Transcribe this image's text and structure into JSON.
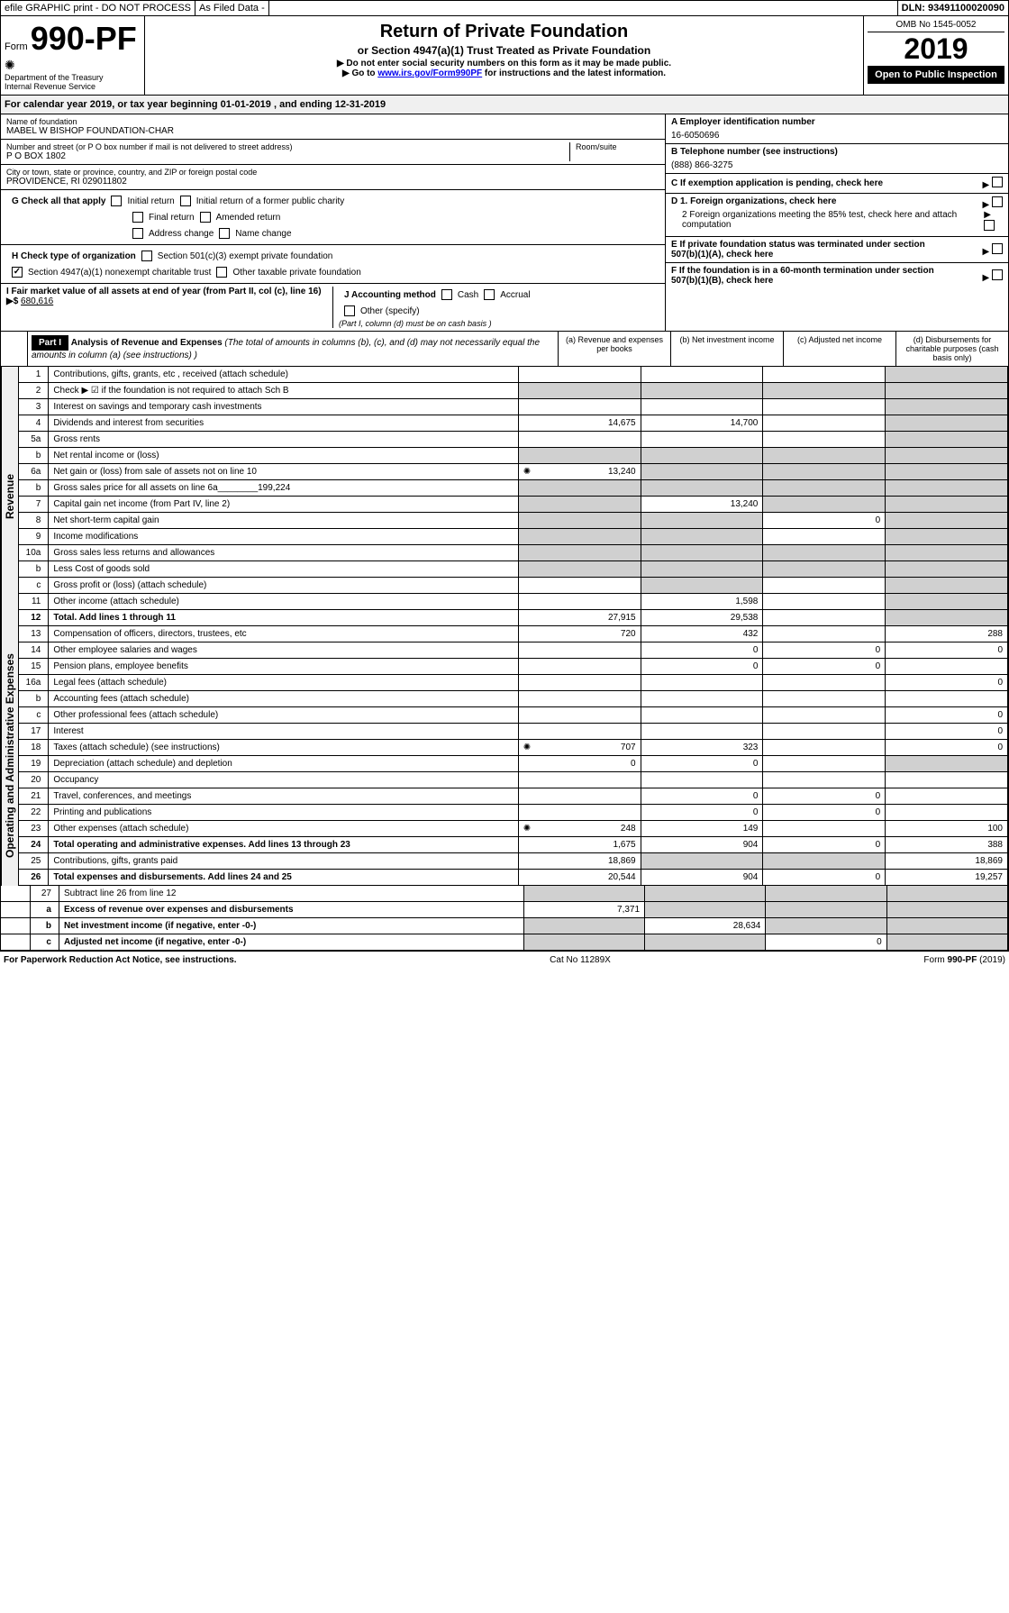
{
  "topBar": {
    "efile": "efile GRAPHIC print - DO NOT PROCESS",
    "asFiled": "As Filed Data -",
    "dln": "DLN: 93491100020090"
  },
  "header": {
    "formPrefix": "Form",
    "formNumber": "990-PF",
    "dept1": "Department of the Treasury",
    "dept2": "Internal Revenue Service",
    "title": "Return of Private Foundation",
    "subtitle": "or Section 4947(a)(1) Trust Treated as Private Foundation",
    "note1": "▶ Do not enter social security numbers on this form as it may be made public.",
    "note2": "▶ Go to www.irs.gov/Form990PF for instructions and the latest information.",
    "omb": "OMB No 1545-0052",
    "year": "2019",
    "openPublic": "Open to Public Inspection"
  },
  "calYear": "For calendar year 2019, or tax year beginning 01-01-2019         , and ending 12-31-2019",
  "foundation": {
    "nameLabel": "Name of foundation",
    "name": "MABEL W BISHOP FOUNDATION-CHAR",
    "addressLabel": "Number and street (or P O  box number if mail is not delivered to street address)",
    "address": "P O BOX 1802",
    "roomLabel": "Room/suite",
    "cityLabel": "City or town, state or province, country, and ZIP or foreign postal code",
    "city": "PROVIDENCE, RI  029011802",
    "einLabel": "A Employer identification number",
    "ein": "16-6050696",
    "phoneLabel": "B Telephone number (see instructions)",
    "phone": "(888) 866-3275",
    "cLabel": "C If exemption application is pending, check here",
    "d1": "D 1. Foreign organizations, check here",
    "d2": "2 Foreign organizations meeting the 85% test, check here and attach computation",
    "eLabel": "E  If private foundation status was terminated under section 507(b)(1)(A), check here",
    "fLabel": "F  If the foundation is in a 60-month termination under section 507(b)(1)(B), check here"
  },
  "checkG": {
    "label": "G Check all that apply",
    "opts": [
      "Initial return",
      "Initial return of a former public charity",
      "Final return",
      "Amended return",
      "Address change",
      "Name change"
    ]
  },
  "checkH": {
    "label": "H Check type of organization",
    "opt1": "Section 501(c)(3) exempt private foundation",
    "opt2": "Section 4947(a)(1) nonexempt charitable trust",
    "opt3": "Other taxable private foundation"
  },
  "sectionI": {
    "label": "I Fair market value of all assets at end of year (from Part II, col  (c), line 16) ▶$",
    "value": "680,616"
  },
  "sectionJ": {
    "label": "J Accounting method",
    "cash": "Cash",
    "accrual": "Accrual",
    "other": "Other (specify)",
    "note": "(Part I, column (d) must be on cash basis )"
  },
  "part1": {
    "label": "Part I",
    "title": "Analysis of Revenue and Expenses",
    "desc": "(The total of amounts in columns (b), (c), and (d) may not necessarily equal the amounts in column (a) (see instructions) )",
    "colA": "(a) Revenue and expenses per books",
    "colB": "(b) Net investment income",
    "colC": "(c) Adjusted net income",
    "colD": "(d) Disbursements for charitable purposes (cash basis only)"
  },
  "revenueLabel": "Revenue",
  "expensesLabel": "Operating and Administrative Expenses",
  "rows": [
    {
      "n": "1",
      "d": "Contributions, gifts, grants, etc , received (attach schedule)",
      "a": "",
      "b": "",
      "c": "",
      "dd": "",
      "shadeD": true
    },
    {
      "n": "2",
      "d": "Check ▶ ☑ if the foundation is not required to attach Sch  B",
      "a": "",
      "b": "",
      "c": "",
      "dd": "",
      "shadeA": true,
      "shadeB": true,
      "shadeC": true,
      "shadeD": true,
      "bold": false
    },
    {
      "n": "3",
      "d": "Interest on savings and temporary cash investments",
      "a": "",
      "b": "",
      "c": "",
      "dd": "",
      "shadeD": true
    },
    {
      "n": "4",
      "d": "Dividends and interest from securities",
      "a": "14,675",
      "b": "14,700",
      "c": "",
      "dd": "",
      "shadeD": true
    },
    {
      "n": "5a",
      "d": "Gross rents",
      "a": "",
      "b": "",
      "c": "",
      "dd": "",
      "shadeD": true
    },
    {
      "n": "b",
      "d": "Net rental income or (loss)",
      "a": "",
      "b": "",
      "c": "",
      "dd": "",
      "shadeA": true,
      "shadeB": true,
      "shadeC": true,
      "shadeD": true
    },
    {
      "n": "6a",
      "d": "Net gain or (loss) from sale of assets not on line 10",
      "a": "13,240",
      "b": "",
      "c": "",
      "dd": "",
      "icon": true,
      "shadeB": true,
      "shadeC": true,
      "shadeD": true
    },
    {
      "n": "b",
      "d": "Gross sales price for all assets on line 6a________199,224",
      "a": "",
      "b": "",
      "c": "",
      "dd": "",
      "shadeA": true,
      "shadeB": true,
      "shadeC": true,
      "shadeD": true
    },
    {
      "n": "7",
      "d": "Capital gain net income (from Part IV, line 2)",
      "a": "",
      "b": "13,240",
      "c": "",
      "dd": "",
      "shadeA": true,
      "shadeC": true,
      "shadeD": true
    },
    {
      "n": "8",
      "d": "Net short-term capital gain",
      "a": "",
      "b": "",
      "c": "0",
      "dd": "",
      "shadeA": true,
      "shadeB": true,
      "shadeD": true
    },
    {
      "n": "9",
      "d": "Income modifications",
      "a": "",
      "b": "",
      "c": "",
      "dd": "",
      "shadeA": true,
      "shadeB": true,
      "shadeD": true
    },
    {
      "n": "10a",
      "d": "Gross sales less returns and allowances",
      "a": "",
      "b": "",
      "c": "",
      "dd": "",
      "shadeA": true,
      "shadeB": true,
      "shadeC": true,
      "shadeD": true
    },
    {
      "n": "b",
      "d": "Less  Cost of goods sold",
      "a": "",
      "b": "",
      "c": "",
      "dd": "",
      "shadeA": true,
      "shadeB": true,
      "shadeC": true,
      "shadeD": true
    },
    {
      "n": "c",
      "d": "Gross profit or (loss) (attach schedule)",
      "a": "",
      "b": "",
      "c": "",
      "dd": "",
      "shadeB": true,
      "shadeD": true
    },
    {
      "n": "11",
      "d": "Other income (attach schedule)",
      "a": "",
      "b": "1,598",
      "c": "",
      "dd": "",
      "shadeD": true
    },
    {
      "n": "12",
      "d": "Total. Add lines 1 through 11",
      "a": "27,915",
      "b": "29,538",
      "c": "",
      "dd": "",
      "bold": true,
      "shadeD": true
    }
  ],
  "expRows": [
    {
      "n": "13",
      "d": "Compensation of officers, directors, trustees, etc",
      "a": "720",
      "b": "432",
      "c": "",
      "dd": "288"
    },
    {
      "n": "14",
      "d": "Other employee salaries and wages",
      "a": "",
      "b": "0",
      "c": "0",
      "dd": "0"
    },
    {
      "n": "15",
      "d": "Pension plans, employee benefits",
      "a": "",
      "b": "0",
      "c": "0",
      "dd": ""
    },
    {
      "n": "16a",
      "d": "Legal fees (attach schedule)",
      "a": "",
      "b": "",
      "c": "",
      "dd": "0"
    },
    {
      "n": "b",
      "d": "Accounting fees (attach schedule)",
      "a": "",
      "b": "",
      "c": "",
      "dd": ""
    },
    {
      "n": "c",
      "d": "Other professional fees (attach schedule)",
      "a": "",
      "b": "",
      "c": "",
      "dd": "0"
    },
    {
      "n": "17",
      "d": "Interest",
      "a": "",
      "b": "",
      "c": "",
      "dd": "0"
    },
    {
      "n": "18",
      "d": "Taxes (attach schedule) (see instructions)",
      "a": "707",
      "b": "323",
      "c": "",
      "dd": "0",
      "icon": true
    },
    {
      "n": "19",
      "d": "Depreciation (attach schedule) and depletion",
      "a": "0",
      "b": "0",
      "c": "",
      "dd": "",
      "shadeD": true
    },
    {
      "n": "20",
      "d": "Occupancy",
      "a": "",
      "b": "",
      "c": "",
      "dd": ""
    },
    {
      "n": "21",
      "d": "Travel, conferences, and meetings",
      "a": "",
      "b": "0",
      "c": "0",
      "dd": ""
    },
    {
      "n": "22",
      "d": "Printing and publications",
      "a": "",
      "b": "0",
      "c": "0",
      "dd": ""
    },
    {
      "n": "23",
      "d": "Other expenses (attach schedule)",
      "a": "248",
      "b": "149",
      "c": "",
      "dd": "100",
      "icon": true
    },
    {
      "n": "24",
      "d": "Total operating and administrative expenses. Add lines 13 through 23",
      "a": "1,675",
      "b": "904",
      "c": "0",
      "dd": "388",
      "bold": true
    },
    {
      "n": "25",
      "d": "Contributions, gifts, grants paid",
      "a": "18,869",
      "b": "",
      "c": "",
      "dd": "18,869",
      "shadeB": true,
      "shadeC": true
    },
    {
      "n": "26",
      "d": "Total expenses and disbursements. Add lines 24 and 25",
      "a": "20,544",
      "b": "904",
      "c": "0",
      "dd": "19,257",
      "bold": true
    }
  ],
  "bottomRows": [
    {
      "n": "27",
      "d": "Subtract line 26 from line 12",
      "a": "",
      "b": "",
      "c": "",
      "dd": "",
      "shadeA": true,
      "shadeB": true,
      "shadeC": true,
      "shadeD": true
    },
    {
      "n": "a",
      "d": "Excess of revenue over expenses and disbursements",
      "a": "7,371",
      "b": "",
      "c": "",
      "dd": "",
      "bold": true,
      "shadeB": true,
      "shadeC": true,
      "shadeD": true
    },
    {
      "n": "b",
      "d": "Net investment income (if negative, enter -0-)",
      "a": "",
      "b": "28,634",
      "c": "",
      "dd": "",
      "bold": true,
      "shadeA": true,
      "shadeC": true,
      "shadeD": true
    },
    {
      "n": "c",
      "d": "Adjusted net income (if negative, enter -0-)",
      "a": "",
      "b": "",
      "c": "0",
      "dd": "",
      "bold": true,
      "shadeA": true,
      "shadeB": true,
      "shadeD": true
    }
  ],
  "footer": {
    "left": "For Paperwork Reduction Act Notice, see instructions.",
    "mid": "Cat  No  11289X",
    "right": "Form 990-PF (2019)"
  }
}
